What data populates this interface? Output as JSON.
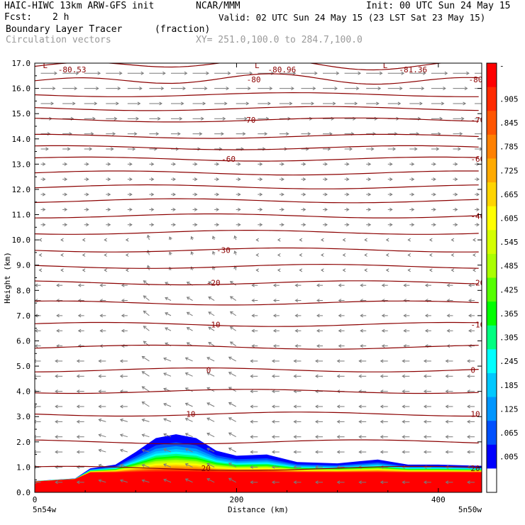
{
  "header": {
    "model": "HAIC-HIWC 13km ARW-GFS init",
    "institution": "NCAR/MMM",
    "init": "Init: 00 UTC Sun 24 May 15",
    "fcst_label": "Fcst:",
    "fcst_value": "2 h",
    "valid": "Valid: 02 UTC Sun 24 May 15 (23 LST Sat 23 May 15)",
    "field_name": "Boundary Layer Tracer",
    "field_units": "(fraction)",
    "vector_name": "Circulation vectors",
    "xy_range": "XY= 251.0,100.0 to 284.7,100.0"
  },
  "chart_data": {
    "type": "heatmap",
    "ylabel": "Height (km)",
    "xlabel": "Distance (km)",
    "xlim": [
      0,
      443
    ],
    "ylim": [
      0,
      17
    ],
    "y_ticks": [
      "0.0",
      "1.0",
      "2.0",
      "3.0",
      "4.0",
      "5.0",
      "6.0",
      "7.0",
      "8.0",
      "9.0",
      "10.0",
      "11.0",
      "12.0",
      "13.0",
      "14.0",
      "15.0",
      "16.0",
      "17.0"
    ],
    "x_ticks": [
      0,
      200,
      400
    ],
    "x_endpoints": {
      "left": "5n54w",
      "right": "5n50w"
    },
    "colorbar": {
      "labels": [
        "-",
        ".905",
        ".845",
        ".785",
        ".725",
        ".665",
        ".605",
        ".545",
        ".485",
        ".425",
        ".365",
        ".305",
        ".245",
        ".185",
        ".125",
        ".065",
        ".005"
      ],
      "colors": [
        "#ff0000",
        "#ff2a00",
        "#ff5500",
        "#ff8000",
        "#ffaa00",
        "#ffd400",
        "#ffff00",
        "#d4ff00",
        "#aaff00",
        "#55ff00",
        "#00ff00",
        "#00ff80",
        "#00ffff",
        "#00c8ff",
        "#0096ff",
        "#0050ff",
        "#0000ff",
        "#ffffff"
      ]
    },
    "tracer_top_profile": {
      "x": [
        0,
        40,
        55,
        80,
        100,
        120,
        140,
        160,
        180,
        200,
        230,
        260,
        300,
        340,
        370,
        400,
        443
      ],
      "y": [
        0.45,
        0.55,
        0.95,
        1.1,
        1.6,
        2.15,
        2.3,
        2.15,
        1.65,
        1.45,
        1.5,
        1.2,
        1.15,
        1.3,
        1.1,
        1.1,
        1.05
      ]
    },
    "contours": [
      {
        "label": "-80.53",
        "x": 23,
        "y": 16.75,
        "kind": "min"
      },
      {
        "label": "-80.96",
        "x": 231,
        "y": 16.75,
        "kind": "min"
      },
      {
        "label": "-81.36",
        "x": 361,
        "y": 16.75,
        "kind": "min"
      },
      {
        "label": "-80",
        "y": 16.35
      },
      {
        "label": "-70",
        "y": 14.75
      },
      {
        "label": "-60",
        "y": 13.2
      },
      {
        "label": "-40",
        "y": 10.95
      },
      {
        "label": "-30",
        "y": 9.6
      },
      {
        "label": "-20",
        "y": 8.3
      },
      {
        "label": "-10",
        "y": 6.65
      },
      {
        "label": "0",
        "y": 4.85
      },
      {
        "label": "10",
        "y": 3.1
      },
      {
        "label": "20",
        "y": 0.95
      }
    ],
    "low_markers": [
      {
        "label": "L",
        "x": 8
      },
      {
        "label": "L",
        "x": 218
      },
      {
        "label": "L",
        "x": 345
      }
    ]
  }
}
